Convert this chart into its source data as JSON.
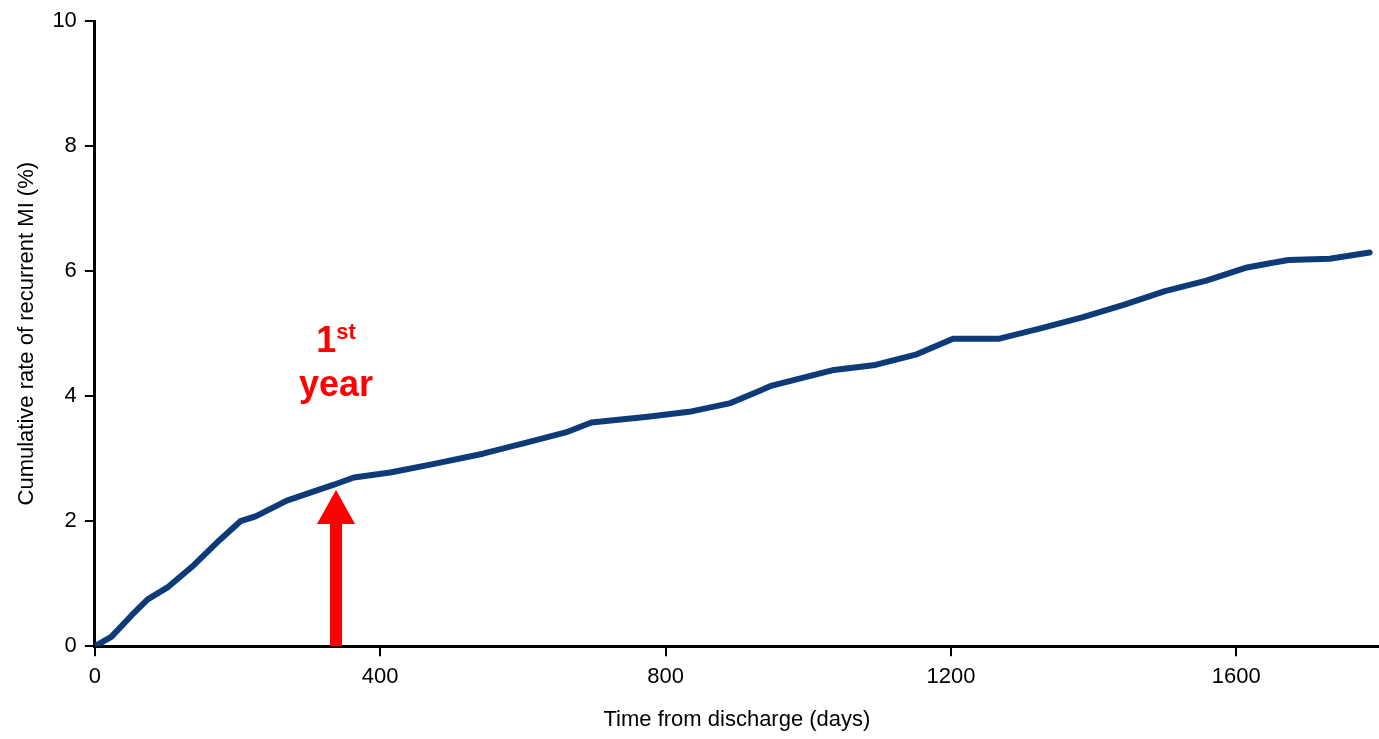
{
  "chart_data": {
    "type": "line",
    "xlabel": "Time from discharge (days)",
    "ylabel": "Cumulative rate of recurrent MI (%)",
    "x": [
      0,
      23,
      52,
      74,
      103,
      139,
      175,
      204,
      226,
      269,
      334,
      363,
      414,
      472,
      544,
      602,
      660,
      696,
      775,
      833,
      891,
      949,
      1036,
      1094,
      1152,
      1203,
      1268,
      1327,
      1384,
      1442,
      1500,
      1558,
      1615,
      1673,
      1731,
      1787
    ],
    "series": [
      {
        "color": "#0d3b78",
        "values": [
          0,
          0.15,
          0.5,
          0.75,
          0.95,
          1.3,
          1.7,
          2.0,
          2.08,
          2.33,
          2.58,
          2.7,
          2.78,
          2.91,
          3.08,
          3.25,
          3.42,
          3.58,
          3.67,
          3.75,
          3.89,
          4.17,
          4.42,
          4.5,
          4.67,
          4.92,
          4.92,
          5.09,
          5.26,
          5.46,
          5.68,
          5.85,
          6.06,
          6.18,
          6.2,
          6.3
        ]
      }
    ],
    "xlim": [
      0,
      1800
    ],
    "xticks": [
      0,
      400,
      800,
      1200,
      1600
    ],
    "ylim": [
      0,
      10
    ],
    "yticks": [
      0,
      2,
      4,
      6,
      8,
      10
    ],
    "grid": false,
    "legend": false,
    "marker": "none",
    "line_style": "solid",
    "annotations": [
      {
        "text": "1$^{st}$\nyear",
        "x": 338,
        "y": 2.5
      }
    ]
  }
}
